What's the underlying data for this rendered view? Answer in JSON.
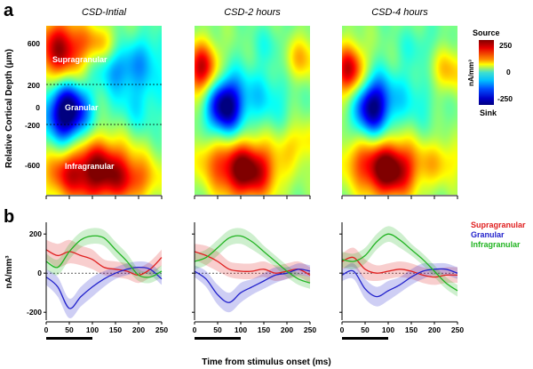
{
  "chart_data": [
    {
      "panel": "a",
      "type": "heatmap",
      "titles": [
        "CSD-Intial",
        "CSD-2 hours",
        "CSD-4 hours"
      ],
      "ylabel": "Relative Cortical Depth (μm)",
      "yticks": [
        "600",
        "200",
        "0",
        "-200",
        "-600"
      ],
      "ytick_values": [
        700,
        240,
        0,
        -240,
        -700
      ],
      "ylim": [
        -900,
        900
      ],
      "xlim": [
        0,
        250
      ],
      "layer_boundaries": [
        240,
        -240
      ],
      "region_labels": [
        "Supragranular",
        "Granular",
        "Infragranular"
      ],
      "colorbar": {
        "top_label": "Source",
        "bottom_label": "Sink",
        "unit": "nA/mm³",
        "ticks": [
          "250",
          "0",
          "-250"
        ],
        "range": [
          -250,
          250
        ]
      },
      "blobs": [
        [
          {
            "t": 30,
            "d": 640,
            "v": 230,
            "st": 38,
            "sd": 260
          },
          {
            "t": 110,
            "d": 720,
            "v": 90,
            "st": 30,
            "sd": 140
          },
          {
            "t": 45,
            "d": -20,
            "v": -300,
            "st": 32,
            "sd": 240
          },
          {
            "t": 200,
            "d": 120,
            "v": -70,
            "st": 45,
            "sd": 300
          },
          {
            "t": 150,
            "d": 440,
            "v": -80,
            "st": 35,
            "sd": 160
          },
          {
            "t": 110,
            "d": -650,
            "v": 260,
            "st": 62,
            "sd": 250
          },
          {
            "t": 200,
            "d": -750,
            "v": 70,
            "st": 40,
            "sd": 150
          },
          {
            "t": 30,
            "d": -700,
            "v": 60,
            "st": 30,
            "sd": 160
          },
          {
            "t": 220,
            "d": 600,
            "v": -60,
            "st": 40,
            "sd": 200
          }
        ],
        [
          {
            "t": 15,
            "d": 440,
            "v": 220,
            "st": 26,
            "sd": 200
          },
          {
            "t": 230,
            "d": 560,
            "v": 100,
            "st": 30,
            "sd": 180
          },
          {
            "t": 65,
            "d": 50,
            "v": -260,
            "st": 28,
            "sd": 220
          },
          {
            "t": 150,
            "d": 150,
            "v": -70,
            "st": 45,
            "sd": 240
          },
          {
            "t": 110,
            "d": -640,
            "v": 280,
            "st": 48,
            "sd": 220
          },
          {
            "t": 230,
            "d": -350,
            "v": 80,
            "st": 30,
            "sd": 160
          },
          {
            "t": 30,
            "d": -500,
            "v": 60,
            "st": 25,
            "sd": 160
          },
          {
            "t": 170,
            "d": 700,
            "v": -40,
            "st": 35,
            "sd": 160
          }
        ],
        [
          {
            "t": 15,
            "d": 420,
            "v": 220,
            "st": 25,
            "sd": 200
          },
          {
            "t": 230,
            "d": 420,
            "v": 100,
            "st": 30,
            "sd": 180
          },
          {
            "t": 65,
            "d": 40,
            "v": -250,
            "st": 28,
            "sd": 220
          },
          {
            "t": 150,
            "d": 150,
            "v": -60,
            "st": 45,
            "sd": 240
          },
          {
            "t": 100,
            "d": -630,
            "v": 290,
            "st": 45,
            "sd": 220
          },
          {
            "t": 220,
            "d": -550,
            "v": 80,
            "st": 35,
            "sd": 170
          },
          {
            "t": 25,
            "d": -520,
            "v": 60,
            "st": 25,
            "sd": 170
          },
          {
            "t": 170,
            "d": 700,
            "v": -40,
            "st": 35,
            "sd": 160
          }
        ]
      ]
    },
    {
      "panel": "b",
      "type": "line",
      "ylabel": "nA/mm³",
      "xlabel": "Time from stimulus onset (ms)",
      "xticks": [
        0,
        50,
        100,
        150,
        200,
        250
      ],
      "yticks": [
        200,
        0,
        -200
      ],
      "xlim": [
        0,
        250
      ],
      "ylim": [
        -240,
        260
      ],
      "stimulus_bar": [
        0,
        100
      ],
      "legend": [
        "Supragranular",
        "Granular",
        "Infragranular"
      ],
      "colors": {
        "Supragranular": "#e02020",
        "Granular": "#2222cc",
        "Infragranular": "#22b422"
      },
      "panels": [
        {
          "x": [
            0,
            25,
            50,
            75,
            100,
            125,
            150,
            175,
            200,
            225,
            250
          ],
          "series": [
            {
              "name": "Supragranular",
              "values": [
                120,
                90,
                110,
                90,
                70,
                30,
                20,
                10,
                -10,
                20,
                80
              ],
              "band": [
                50,
                60,
                60,
                50,
                50,
                40,
                40,
                40,
                40,
                40,
                40
              ]
            },
            {
              "name": "Granular",
              "values": [
                -20,
                -70,
                -180,
                -120,
                -70,
                -30,
                0,
                20,
                30,
                20,
                -30
              ],
              "band": [
                40,
                50,
                50,
                50,
                50,
                40,
                30,
                30,
                30,
                30,
                30
              ]
            },
            {
              "name": "Infragranular",
              "values": [
                60,
                30,
                110,
                170,
                190,
                180,
                120,
                60,
                -10,
                -20,
                10
              ],
              "band": [
                40,
                40,
                40,
                40,
                40,
                40,
                40,
                40,
                30,
                30,
                30
              ]
            }
          ]
        },
        {
          "x": [
            0,
            25,
            50,
            75,
            100,
            125,
            150,
            175,
            200,
            225,
            250
          ],
          "series": [
            {
              "name": "Supragranular",
              "values": [
                110,
                90,
                60,
                20,
                10,
                10,
                20,
                0,
                10,
                20,
                -10
              ],
              "band": [
                40,
                50,
                50,
                40,
                40,
                40,
                40,
                40,
                40,
                40,
                40
              ]
            },
            {
              "name": "Granular",
              "values": [
                10,
                -30,
                -110,
                -150,
                -100,
                -70,
                -40,
                -10,
                0,
                20,
                10
              ],
              "band": [
                30,
                40,
                50,
                50,
                50,
                40,
                40,
                40,
                30,
                30,
                30
              ]
            },
            {
              "name": "Infragranular",
              "values": [
                60,
                80,
                130,
                180,
                190,
                160,
                110,
                60,
                10,
                -30,
                -50
              ],
              "band": [
                40,
                40,
                40,
                40,
                40,
                40,
                30,
                30,
                30,
                30,
                30
              ]
            }
          ]
        },
        {
          "x": [
            0,
            25,
            50,
            75,
            100,
            125,
            150,
            175,
            200,
            225,
            250
          ],
          "series": [
            {
              "name": "Supragranular",
              "values": [
                60,
                80,
                20,
                0,
                10,
                20,
                10,
                -10,
                -20,
                -10,
                -10
              ],
              "band": [
                40,
                50,
                50,
                40,
                40,
                40,
                40,
                40,
                40,
                40,
                40
              ]
            },
            {
              "name": "Granular",
              "values": [
                -10,
                10,
                -80,
                -120,
                -90,
                -60,
                -20,
                10,
                20,
                20,
                0
              ],
              "band": [
                30,
                40,
                50,
                50,
                50,
                40,
                40,
                40,
                30,
                30,
                30
              ]
            },
            {
              "name": "Infragranular",
              "values": [
                70,
                60,
                90,
                160,
                200,
                170,
                120,
                70,
                10,
                -50,
                -90
              ],
              "band": [
                40,
                40,
                40,
                40,
                40,
                40,
                30,
                30,
                30,
                30,
                30
              ]
            }
          ]
        }
      ]
    }
  ]
}
